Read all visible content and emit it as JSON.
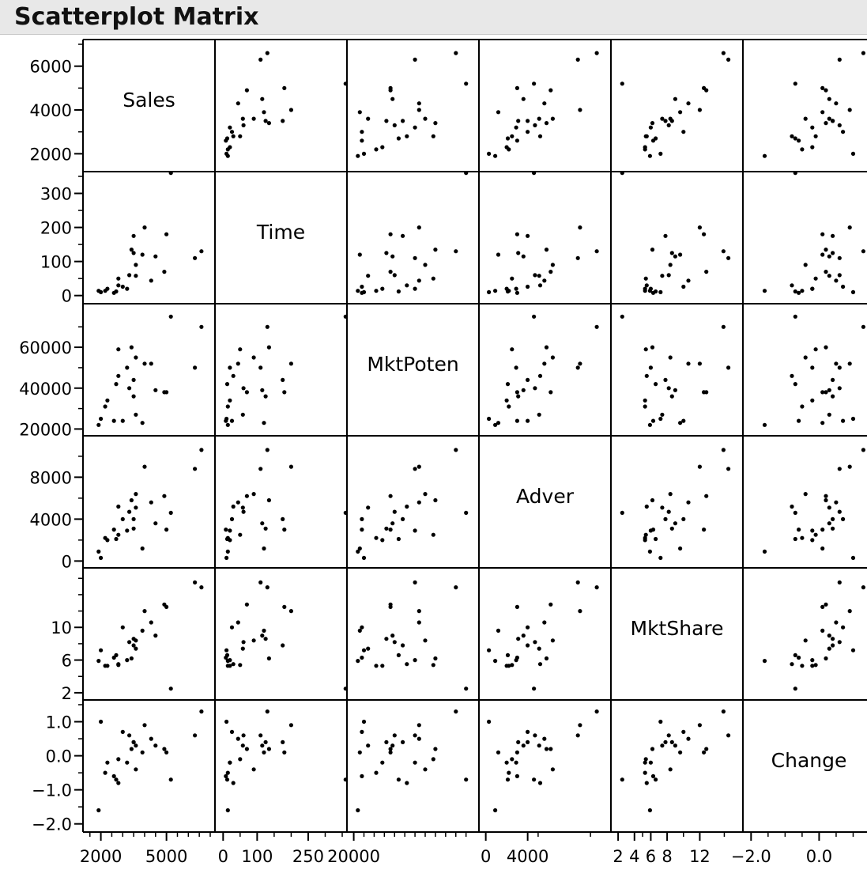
{
  "title": "Scatterplot Matrix",
  "colors": {
    "point": "#000000",
    "frame": "#000000",
    "background": "#ffffff",
    "title_bar": "#e8e8e8"
  },
  "chart_data": {
    "type": "scatter",
    "title": "Scatterplot Matrix",
    "variables": [
      {
        "name": "Sales",
        "range": [
          1400,
          7000
        ],
        "y_ticks": [
          "6000",
          "4000",
          "2000"
        ],
        "y_tick_values": [
          6000,
          4000,
          2000
        ],
        "x_ticks": [
          "2000",
          "5000"
        ],
        "x_tick_values": [
          2000,
          5000
        ]
      },
      {
        "name": "Time",
        "range": [
          -10,
          350
        ],
        "y_ticks": [
          "300",
          "200",
          "100",
          "0"
        ],
        "y_tick_values": [
          300,
          200,
          100,
          0
        ],
        "x_ticks": [
          "0",
          "100",
          "250"
        ],
        "x_tick_values": [
          0,
          100,
          250
        ]
      },
      {
        "name": "MktPoten",
        "range": [
          19000,
          79000
        ],
        "y_ticks": [
          "60000",
          "40000",
          "20000"
        ],
        "y_tick_values": [
          60000,
          40000,
          20000
        ],
        "x_ticks": [
          "20000"
        ],
        "x_tick_values": [
          20000
        ]
      },
      {
        "name": "Adver",
        "range": [
          -200,
          11500
        ],
        "y_ticks": [
          "8000",
          "4000",
          "0"
        ],
        "y_tick_values": [
          8000,
          4000,
          0
        ],
        "x_ticks": [
          "0",
          "4000"
        ],
        "x_tick_values": [
          0,
          4000
        ]
      },
      {
        "name": "MktShare",
        "range": [
          1.7,
          16.7
        ],
        "y_ticks": [
          "10",
          "6",
          "2"
        ],
        "y_tick_values": [
          10,
          6,
          2
        ],
        "x_ticks": [
          "2",
          "4",
          "6",
          "8",
          "12"
        ],
        "x_tick_values": [
          2,
          4,
          6,
          8,
          12
        ]
      },
      {
        "name": "Change",
        "range": [
          -2.1,
          1.5
        ],
        "y_ticks": [
          "1.0",
          "0.0",
          "−1.0",
          "−2.0"
        ],
        "y_tick_values": [
          1.0,
          0.0,
          -1.0,
          -2.0
        ],
        "x_ticks": [
          "−2.0",
          "0.0"
        ],
        "x_tick_values": [
          -2.0,
          0.0
        ]
      }
    ],
    "observations": [
      [
        5200,
        360,
        75000,
        4600,
        2.5,
        -0.7
      ],
      [
        6600,
        130,
        70000,
        10600,
        14.9,
        1.3
      ],
      [
        6300,
        110,
        50000,
        8800,
        15.5,
        0.6
      ],
      [
        4300,
        44,
        52000,
        5600,
        10.6,
        0.5
      ],
      [
        3000,
        26,
        24000,
        4000,
        10.0,
        0.7
      ],
      [
        3600,
        58,
        27000,
        5100,
        7.4,
        0.3
      ],
      [
        4900,
        70,
        38000,
        6200,
        12.8,
        0.2
      ],
      [
        4500,
        115,
        39000,
        3600,
        9.0,
        0.3
      ],
      [
        5000,
        180,
        38000,
        3000,
        12.5,
        0.1
      ],
      [
        3900,
        120,
        23000,
        1200,
        9.6,
        0.1
      ],
      [
        3500,
        125,
        36000,
        3100,
        8.6,
        0.4
      ],
      [
        3400,
        135,
        60000,
        5800,
        6.2,
        0.2
      ],
      [
        2800,
        50,
        59000,
        2500,
        5.4,
        -0.1
      ],
      [
        2300,
        20,
        34000,
        2000,
        5.3,
        -0.2
      ],
      [
        2200,
        14,
        31000,
        2200,
        5.3,
        -0.5
      ],
      [
        2600,
        8,
        24000,
        3000,
        6.3,
        -0.6
      ],
      [
        1900,
        14,
        22000,
        900,
        5.9,
        -1.6
      ],
      [
        2000,
        10,
        25000,
        300,
        7.2,
        1.0
      ],
      [
        2700,
        12,
        42000,
        2100,
        6.6,
        -0.7
      ],
      [
        3200,
        20,
        50000,
        2900,
        6.0,
        -0.2
      ],
      [
        3300,
        60,
        40000,
        4700,
        8.2,
        0.6
      ],
      [
        3600,
        90,
        55000,
        6400,
        8.4,
        -0.4
      ],
      [
        2800,
        30,
        46000,
        5200,
        5.5,
        -0.8
      ],
      [
        4000,
        200,
        52000,
        9000,
        12.0,
        0.9
      ],
      [
        3500,
        175,
        44000,
        4000,
        7.8,
        0.4
      ]
    ]
  }
}
